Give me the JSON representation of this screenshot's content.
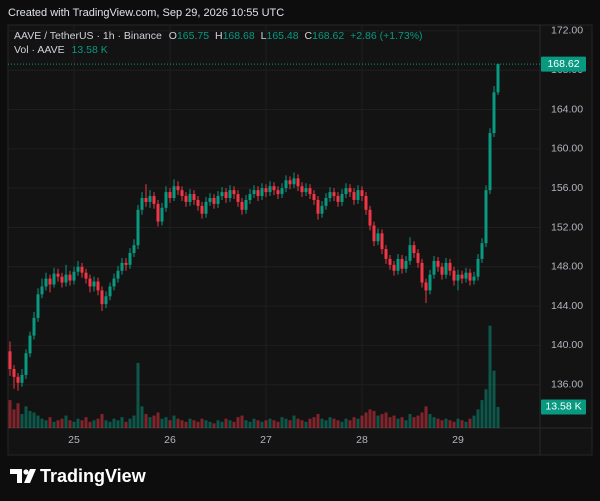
{
  "header": "Created with TradingView.com, Sep 29, 2026 10:55 UTC",
  "footer": "TradingView",
  "chart_data": {
    "type": "candlestick",
    "legend": {
      "symbol": "AAVE / TetherUS · 1h · Binance",
      "o": "O",
      "h": "H",
      "l": "L",
      "c": "C",
      "change": "+2.86 (+1.73%)"
    },
    "volume_legend": {
      "name": "Vol · AAVE",
      "value": "13.58 K"
    },
    "volume_axis_label": "13.58 K",
    "up_color": "#089981",
    "down_color": "#f23645",
    "grid": true,
    "categories": [
      null,
      null,
      null,
      null,
      null,
      null,
      null,
      null,
      null,
      null,
      null,
      null,
      null,
      null,
      null,
      null,
      "25",
      null,
      null,
      null,
      null,
      null,
      null,
      null,
      null,
      null,
      null,
      null,
      null,
      null,
      null,
      null,
      null,
      null,
      null,
      null,
      null,
      null,
      null,
      null,
      "26",
      null,
      null,
      null,
      null,
      null,
      null,
      null,
      null,
      null,
      null,
      null,
      null,
      null,
      null,
      null,
      null,
      null,
      null,
      null,
      null,
      null,
      null,
      null,
      "27",
      null,
      null,
      null,
      null,
      null,
      null,
      null,
      null,
      null,
      null,
      null,
      null,
      null,
      null,
      null,
      null,
      null,
      null,
      null,
      null,
      null,
      null,
      null,
      "28",
      null,
      null,
      null,
      null,
      null,
      null,
      null,
      null,
      null,
      null,
      null,
      null,
      null,
      null,
      null,
      null,
      null,
      null,
      null,
      null,
      null,
      null,
      null,
      "29",
      null,
      null,
      null,
      null,
      null,
      null,
      null,
      null,
      null,
      null
    ],
    "open": [
      139.4,
      137.6,
      136.8,
      136.2,
      137.0,
      139.2,
      141.0,
      142.8,
      145.2,
      146.0,
      146.8,
      146.2,
      147.3,
      147.0,
      146.4,
      147.2,
      146.6,
      147.5,
      148.0,
      147.4,
      146.8,
      146.0,
      146.5,
      145.6,
      144.2,
      145.0,
      146.0,
      146.8,
      147.6,
      148.4,
      148.2,
      149.4,
      150.2,
      153.8,
      155.0,
      154.6,
      155.2,
      154.4,
      152.6,
      154.0,
      155.6,
      155.0,
      156.2,
      155.8,
      155.2,
      154.6,
      155.4,
      154.8,
      154.2,
      153.4,
      154.6,
      155.0,
      154.4,
      155.2,
      155.6,
      155.0,
      155.8,
      155.4,
      154.6,
      153.8,
      154.8,
      155.4,
      155.8,
      155.2,
      156.0,
      155.6,
      156.2,
      155.8,
      155.4,
      156.0,
      156.8,
      156.4,
      157.0,
      156.2,
      155.6,
      156.0,
      155.4,
      154.8,
      153.4,
      154.2,
      155.0,
      155.6,
      155.2,
      154.6,
      155.4,
      156.0,
      155.6,
      154.8,
      155.8,
      155.2,
      153.8,
      152.2,
      150.6,
      151.4,
      149.8,
      148.8,
      148.2,
      147.6,
      148.8,
      147.8,
      148.6,
      150.2,
      149.4,
      148.4,
      146.4,
      145.6,
      147.2,
      148.6,
      148.0,
      147.2,
      148.4,
      147.6,
      146.6,
      147.2,
      146.8,
      147.4,
      146.6,
      147.0,
      148.8,
      150.4,
      155.8,
      161.6,
      165.75
    ],
    "high": [
      140.4,
      138.0,
      137.2,
      137.6,
      139.6,
      141.4,
      143.4,
      145.8,
      146.8,
      147.4,
      147.2,
      147.9,
      147.8,
      147.4,
      148.2,
      147.6,
      148.0,
      148.6,
      148.4,
      147.8,
      147.2,
      147.0,
      146.9,
      146.0,
      145.5,
      146.4,
      147.3,
      148.1,
      148.9,
      148.9,
      149.9,
      150.8,
      154.3,
      155.6,
      156.4,
      155.8,
      155.6,
      154.8,
      154.5,
      156.2,
      156.0,
      156.9,
      156.7,
      156.2,
      155.6,
      155.9,
      155.8,
      155.2,
      154.6,
      155.1,
      155.5,
      155.4,
      155.7,
      156.1,
      156.0,
      156.3,
      156.2,
      155.8,
      155.0,
      155.3,
      155.9,
      156.3,
      156.2,
      156.5,
      156.4,
      156.7,
      156.6,
      156.2,
      156.5,
      157.3,
      157.2,
      157.6,
      157.4,
      156.6,
      156.5,
      156.4,
      155.8,
      155.2,
      154.7,
      155.5,
      156.1,
      156.0,
      155.6,
      155.9,
      156.5,
      156.4,
      156.0,
      156.3,
      156.2,
      155.6,
      154.2,
      152.6,
      151.9,
      151.8,
      150.2,
      149.2,
      148.6,
      149.3,
      149.2,
      149.1,
      151.0,
      150.6,
      149.8,
      148.8,
      146.8,
      147.7,
      149.1,
      149.0,
      148.4,
      148.9,
      148.8,
      148.0,
      147.7,
      147.6,
      147.9,
      147.8,
      147.5,
      149.3,
      150.9,
      156.3,
      162.1,
      166.4,
      168.68
    ],
    "low": [
      136.9,
      135.6,
      135.4,
      135.8,
      136.6,
      138.8,
      140.6,
      142.4,
      144.8,
      145.6,
      145.4,
      145.9,
      146.5,
      145.9,
      146.0,
      146.1,
      146.2,
      147.1,
      146.9,
      146.3,
      145.4,
      145.5,
      145.1,
      143.5,
      143.8,
      144.6,
      145.6,
      146.4,
      147.2,
      147.6,
      147.8,
      149.0,
      149.8,
      153.3,
      154.1,
      154.0,
      153.9,
      152.1,
      152.2,
      153.6,
      154.5,
      154.7,
      155.3,
      154.7,
      154.1,
      154.2,
      154.3,
      153.7,
      152.9,
      153.0,
      154.2,
      153.9,
      154.0,
      154.8,
      154.5,
      154.6,
      154.9,
      154.1,
      153.3,
      153.4,
      154.4,
      155.0,
      154.7,
      154.8,
      155.1,
      155.2,
      155.3,
      154.9,
      155.0,
      155.6,
      155.9,
      156.0,
      155.7,
      155.1,
      155.2,
      154.9,
      154.3,
      152.8,
      153.0,
      153.8,
      154.6,
      154.7,
      154.1,
      154.2,
      155.0,
      155.1,
      154.3,
      154.4,
      154.7,
      153.3,
      151.7,
      150.1,
      150.2,
      149.3,
      148.3,
      147.7,
      147.1,
      147.2,
      147.3,
      147.4,
      148.2,
      148.9,
      147.9,
      145.9,
      144.3,
      145.2,
      146.8,
      147.5,
      146.7,
      146.8,
      147.1,
      146.1,
      145.6,
      146.3,
      146.4,
      146.1,
      146.2,
      146.6,
      148.4,
      150.0,
      155.4,
      161.2,
      165.48
    ],
    "close": [
      137.6,
      136.8,
      136.2,
      137.0,
      139.2,
      141.0,
      142.8,
      145.2,
      146.0,
      146.8,
      146.2,
      147.3,
      147.0,
      146.4,
      147.2,
      146.6,
      147.5,
      148.0,
      147.4,
      146.8,
      146.0,
      146.5,
      145.6,
      144.2,
      145.0,
      146.0,
      146.8,
      147.6,
      148.4,
      148.2,
      149.4,
      150.2,
      153.8,
      155.0,
      154.6,
      155.2,
      154.4,
      152.6,
      154.0,
      155.6,
      155.0,
      156.2,
      155.8,
      155.2,
      154.6,
      155.4,
      154.8,
      154.2,
      153.4,
      154.6,
      155.0,
      154.4,
      155.2,
      155.6,
      155.0,
      155.8,
      155.4,
      154.6,
      153.8,
      154.8,
      155.4,
      155.8,
      155.2,
      156.0,
      155.6,
      156.2,
      155.8,
      155.4,
      156.0,
      156.8,
      156.4,
      157.0,
      156.2,
      155.6,
      156.0,
      155.4,
      154.8,
      153.4,
      154.2,
      155.0,
      155.6,
      155.2,
      154.6,
      155.4,
      156.0,
      155.6,
      154.8,
      155.8,
      155.2,
      153.8,
      152.2,
      150.6,
      151.4,
      149.8,
      148.8,
      148.2,
      147.6,
      148.8,
      147.8,
      148.6,
      150.2,
      149.4,
      148.4,
      146.4,
      145.6,
      147.2,
      148.6,
      148.0,
      147.2,
      148.4,
      147.6,
      146.6,
      147.2,
      146.8,
      147.4,
      146.6,
      147.0,
      148.8,
      150.4,
      155.8,
      161.6,
      165.75,
      168.62
    ],
    "volume": [
      18,
      12,
      16,
      9,
      14,
      11,
      10,
      8,
      6,
      5,
      7,
      4,
      5,
      6,
      8,
      5,
      4,
      6,
      5,
      7,
      4,
      5,
      6,
      9,
      5,
      4,
      6,
      5,
      7,
      4,
      6,
      8,
      42,
      14,
      9,
      7,
      8,
      10,
      6,
      7,
      5,
      8,
      6,
      5,
      4,
      6,
      5,
      4,
      6,
      5,
      4,
      3,
      5,
      4,
      6,
      5,
      4,
      7,
      8,
      5,
      4,
      6,
      5,
      4,
      5,
      6,
      5,
      4,
      7,
      6,
      5,
      8,
      6,
      5,
      4,
      6,
      7,
      9,
      6,
      5,
      7,
      6,
      5,
      4,
      6,
      5,
      7,
      6,
      8,
      10,
      12,
      11,
      8,
      9,
      10,
      7,
      8,
      6,
      7,
      5,
      9,
      7,
      8,
      10,
      14,
      9,
      7,
      6,
      5,
      6,
      5,
      4,
      6,
      5,
      4,
      6,
      8,
      12,
      18,
      25,
      66,
      37,
      13.58
    ],
    "ylim": [
      131.6,
      172.6
    ],
    "yticks": [
      {
        "value": 136,
        "label": "136.00"
      },
      {
        "value": 140,
        "label": "140.00"
      },
      {
        "value": 144,
        "label": "144.00"
      },
      {
        "value": 148,
        "label": "148.00"
      },
      {
        "value": 152,
        "label": "152.00"
      },
      {
        "value": 156,
        "label": "156.00"
      },
      {
        "value": 160,
        "label": "160.00"
      },
      {
        "value": 164,
        "label": "164.00"
      },
      {
        "value": 168,
        "label": "168.00"
      },
      {
        "value": 172,
        "label": "172.00"
      }
    ],
    "vlim": [
      0,
      260
    ]
  }
}
